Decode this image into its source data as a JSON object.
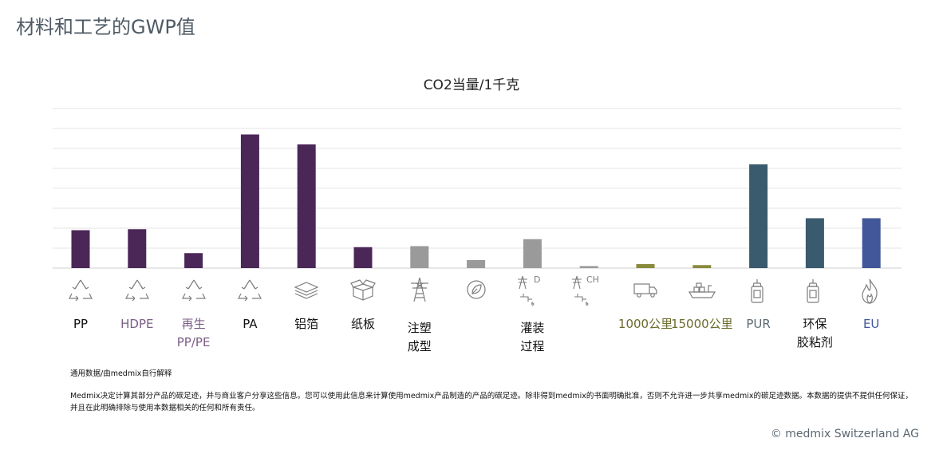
{
  "page": {
    "title": "材料和工艺的GWP值",
    "source_note": "通用数据/由medmix自行解释",
    "disclaimer": "Medmix决定计算其部分产品的碳足迹，并与商业客户分享这些信息。您可以使用此信息来计算使用medmix产品制造的产品的碳足迹。除非得到medmix的书面明确批准，否则不允许进一步共享medmix的碳足迹数据。本数据的提供不提供任何保证，并且在此明确排除与使用本数据相关的任何和所有责任。",
    "copyright": "© medmix Switzerland AG"
  },
  "chart_data": {
    "type": "bar",
    "title": "CO2当量/1千克",
    "grid": true,
    "ylim": [
      0,
      8
    ],
    "yticks": [
      0,
      1,
      2,
      3,
      4,
      5,
      6,
      7,
      8
    ],
    "categories": [
      {
        "label": "PP",
        "value": 1.9,
        "color": "#4b2758",
        "label_color": "#111111",
        "icon": "recycle-icon"
      },
      {
        "label": "HDPE",
        "value": 1.95,
        "color": "#4b2758",
        "label_color": "#7a5e86",
        "icon": "recycle-icon"
      },
      {
        "label": "再生\nPP/PE",
        "value": 0.75,
        "color": "#4b2758",
        "label_color": "#7a5e86",
        "icon": "recycle-icon"
      },
      {
        "label": "PA",
        "value": 6.7,
        "color": "#4b2758",
        "label_color": "#111111",
        "icon": "recycle-icon"
      },
      {
        "label": "铝箔",
        "value": 6.2,
        "color": "#4b2758",
        "label_color": "#111111",
        "icon": "layers-icon"
      },
      {
        "label": "纸板",
        "value": 1.05,
        "color": "#4b2758",
        "label_color": "#111111",
        "icon": "box-icon"
      },
      {
        "label": "注塑\n成型",
        "value": 1.1,
        "color": "#9a9a9a",
        "label_color": "#111111",
        "icon": "power-tower-icon"
      },
      {
        "label": "",
        "value": 0.4,
        "color": "#9a9a9a",
        "label_color": "#111111",
        "icon": "leaf-icon"
      },
      {
        "label": "灌装\n过程",
        "value": 1.45,
        "color": "#9a9a9a",
        "label_color": "#111111",
        "icon": "tower-tap-d-icon",
        "icon_text": "D"
      },
      {
        "label": "",
        "value": 0.1,
        "color": "#9a9a9a",
        "label_color": "#111111",
        "icon": "tower-tap-ch-icon",
        "icon_text": "CH"
      },
      {
        "label": "1000公里",
        "value": 0.2,
        "color": "#8a8a3c",
        "label_color": "#6b6b2c",
        "icon": "truck-icon"
      },
      {
        "label": "15000公里",
        "value": 0.15,
        "color": "#8a8a3c",
        "label_color": "#6b6b2c",
        "icon": "ship-icon"
      },
      {
        "label": "PUR",
        "value": 5.2,
        "color": "#3a5a6e",
        "label_color": "#5b6b73",
        "icon": "glue-bottle-icon"
      },
      {
        "label": "环保\n胶粘剂",
        "value": 2.5,
        "color": "#3a5a6e",
        "label_color": "#111111",
        "icon": "glue-bottle-icon"
      },
      {
        "label": "EU",
        "value": 2.5,
        "color": "#42579a",
        "label_color": "#42579a",
        "icon": "flame-icon"
      }
    ]
  }
}
